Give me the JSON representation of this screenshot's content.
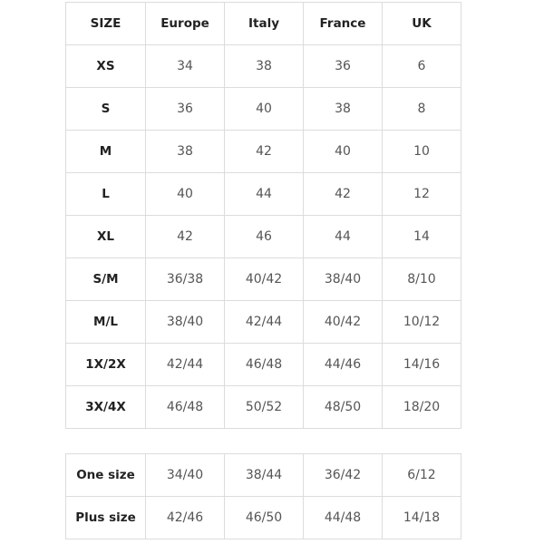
{
  "size_table": {
    "header": [
      "SIZE",
      "Europe",
      "Italy",
      "France",
      "UK"
    ],
    "rows": [
      [
        "XS",
        "34",
        "38",
        "36",
        "6"
      ],
      [
        "S",
        "36",
        "40",
        "38",
        "8"
      ],
      [
        "M",
        "38",
        "42",
        "40",
        "10"
      ],
      [
        "L",
        "40",
        "44",
        "42",
        "12"
      ],
      [
        "XL",
        "42",
        "46",
        "44",
        "14"
      ],
      [
        "S/M",
        "36/38",
        "40/42",
        "38/40",
        "8/10"
      ],
      [
        "M/L",
        "38/40",
        "42/44",
        "40/42",
        "10/12"
      ],
      [
        "1X/2X",
        "42/44",
        "46/48",
        "44/46",
        "14/16"
      ],
      [
        "3X/4X",
        "46/48",
        "50/52",
        "48/50",
        "18/20"
      ]
    ]
  },
  "extra_table": {
    "rows": [
      [
        "One size",
        "34/40",
        "38/44",
        "36/42",
        "6/12"
      ],
      [
        "Plus size",
        "42/46",
        "46/50",
        "44/48",
        "14/18"
      ]
    ]
  }
}
